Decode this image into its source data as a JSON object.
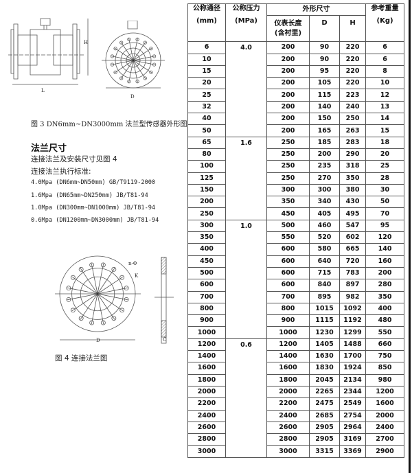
{
  "figure3": {
    "caption": "图 3    DN6mm~DN3000mm 法兰型传感器外形图",
    "labels": {
      "length": "L",
      "height": "H",
      "diameter": "D"
    }
  },
  "flange_section": {
    "title": "法兰尺寸",
    "line1": "连接法兰及安装尺寸见图 4",
    "line2": "连接法兰执行标准:",
    "standards": [
      "4.0Mpa (DN6mm~DN50mm)    GB/T9119-2000",
      "1.6Mpa (DN65mm~DN250mm)    JB/T81-94",
      "1.0Mpa (DN300mm~DN1000mm)    JB/T81-94",
      "0.6Mpa (DN1200mm~DN3000mm)    JB/T81-94"
    ]
  },
  "figure4": {
    "caption": "图 4   连接法兰图",
    "labels": {
      "holes": "n-Φ",
      "pcd": "K",
      "diameter": "D",
      "thickness": "C"
    }
  },
  "table": {
    "headers": {
      "dn": "公称通径",
      "dn_unit": "(mm)",
      "pressure": "公称压力",
      "pressure_unit": "(MPa)",
      "dims": "外形尺寸",
      "length": "仪表长度",
      "length_sub": "(含衬里)",
      "d": "D",
      "h": "H",
      "weight": "参考重量",
      "weight_unit": "(Kg)"
    },
    "groups": [
      {
        "pressure": "4.0",
        "rows": [
          [
            "6",
            "200",
            "90",
            "220",
            "6"
          ],
          [
            "10",
            "200",
            "90",
            "220",
            "6"
          ],
          [
            "15",
            "200",
            "95",
            "220",
            "8"
          ],
          [
            "20",
            "200",
            "105",
            "220",
            "10"
          ],
          [
            "25",
            "200",
            "115",
            "223",
            "12"
          ],
          [
            "32",
            "200",
            "140",
            "240",
            "13"
          ],
          [
            "40",
            "200",
            "150",
            "250",
            "14"
          ],
          [
            "50",
            "200",
            "165",
            "263",
            "15"
          ]
        ]
      },
      {
        "pressure": "1.6",
        "rows": [
          [
            "65",
            "250",
            "185",
            "283",
            "18"
          ],
          [
            "80",
            "250",
            "200",
            "290",
            "20"
          ],
          [
            "100",
            "250",
            "235",
            "318",
            "25"
          ],
          [
            "125",
            "250",
            "270",
            "350",
            "28"
          ],
          [
            "150",
            "300",
            "300",
            "380",
            "30"
          ],
          [
            "200",
            "350",
            "340",
            "430",
            "50"
          ],
          [
            "250",
            "450",
            "405",
            "495",
            "70"
          ]
        ]
      },
      {
        "pressure": "1.0",
        "rows": [
          [
            "300",
            "500",
            "460",
            "547",
            "95"
          ],
          [
            "350",
            "550",
            "520",
            "602",
            "120"
          ],
          [
            "400",
            "600",
            "580",
            "665",
            "140"
          ],
          [
            "450",
            "600",
            "640",
            "720",
            "160"
          ],
          [
            "500",
            "600",
            "715",
            "783",
            "200"
          ],
          [
            "600",
            "600",
            "840",
            "897",
            "280"
          ],
          [
            "700",
            "700",
            "895",
            "982",
            "350"
          ],
          [
            "800",
            "800",
            "1015",
            "1092",
            "400"
          ],
          [
            "900",
            "900",
            "1115",
            "1192",
            "480"
          ],
          [
            "1000",
            "1000",
            "1230",
            "1299",
            "550"
          ]
        ]
      },
      {
        "pressure": "0.6",
        "rows": [
          [
            "1200",
            "1200",
            "1405",
            "1488",
            "660"
          ],
          [
            "1400",
            "1400",
            "1630",
            "1700",
            "750"
          ],
          [
            "1600",
            "1600",
            "1830",
            "1924",
            "850"
          ],
          [
            "1800",
            "1800",
            "2045",
            "2134",
            "980"
          ],
          [
            "2000",
            "2000",
            "2265",
            "2344",
            "1200"
          ],
          [
            "2200",
            "2200",
            "2475",
            "2549",
            "1600"
          ],
          [
            "2400",
            "2400",
            "2685",
            "2754",
            "2000"
          ],
          [
            "2600",
            "2600",
            "2905",
            "2964",
            "2400"
          ],
          [
            "2800",
            "2800",
            "2905",
            "3169",
            "2700"
          ],
          [
            "3000",
            "3000",
            "3315",
            "3369",
            "2900"
          ]
        ]
      }
    ]
  }
}
